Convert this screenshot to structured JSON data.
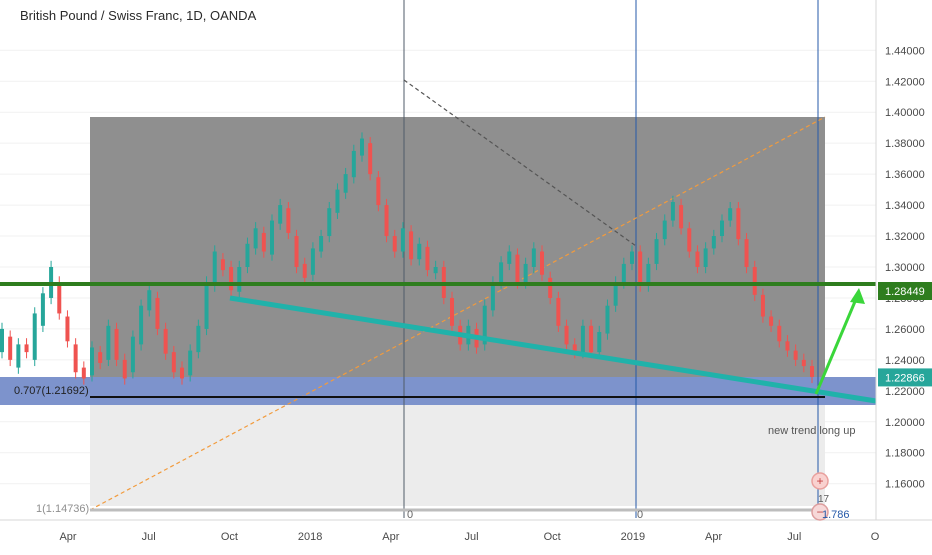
{
  "header": {
    "title": "British Pound / Swiss Franc, 1D, OANDA"
  },
  "chart_data": {
    "type": "candlestick",
    "title": "British Pound / Swiss Franc, 1D, OANDA",
    "y_axis": {
      "ticks": [
        "1.44000",
        "1.42000",
        "1.40000",
        "1.38000",
        "1.36000",
        "1.34000",
        "1.32000",
        "1.30000",
        "1.28000",
        "1.26000",
        "1.24000",
        "1.22000",
        "1.20000",
        "1.18000",
        "1.16000"
      ],
      "tick_values": [
        1.44,
        1.42,
        1.4,
        1.38,
        1.36,
        1.34,
        1.32,
        1.3,
        1.28,
        1.26,
        1.24,
        1.22,
        1.2,
        1.18,
        1.16
      ],
      "ylim": [
        1.143,
        1.457
      ]
    },
    "x_axis": {
      "ticks": [
        "Apr",
        "Jul",
        "Oct",
        "2018",
        "Apr",
        "Jul",
        "Oct",
        "2019",
        "Apr",
        "Jul",
        "O"
      ],
      "tick_index": [
        0,
        1,
        2,
        3,
        4,
        5,
        6,
        7,
        8,
        9,
        10
      ]
    },
    "price_labels": [
      {
        "text": "1.28449",
        "value": 1.28449,
        "color": "#2e7d1e"
      },
      {
        "text": "1.22866",
        "value": 1.22866,
        "color": "#26a69a"
      }
    ],
    "levels": {
      "support_line": 1.28449,
      "fib_box_top": 1.385,
      "fib_level_707": 1.21692,
      "fib_level_1": 1.14736
    },
    "fib_labels": {
      "level_707": "0.707(1.21692)",
      "level_1": "1(1.14736)"
    },
    "annotations": {
      "trend_text": "new trend long up",
      "zero_label_a": "0",
      "zero_label_b": "0",
      "bottom_count": "17",
      "bottom_value": "1.786"
    },
    "path_points": [
      [
        1.245,
        1.26
      ],
      [
        1.255,
        1.24
      ],
      [
        1.235,
        1.25
      ],
      [
        1.25,
        1.245
      ],
      [
        1.24,
        1.27
      ],
      [
        1.262,
        1.283
      ],
      [
        1.28,
        1.3
      ],
      [
        1.29,
        1.27
      ],
      [
        1.268,
        1.252
      ],
      [
        1.25,
        1.232
      ],
      [
        1.235,
        1.228
      ],
      [
        1.23,
        1.248
      ],
      [
        1.245,
        1.238
      ],
      [
        1.24,
        1.262
      ],
      [
        1.26,
        1.24
      ],
      [
        1.24,
        1.228
      ],
      [
        1.232,
        1.255
      ],
      [
        1.25,
        1.275
      ],
      [
        1.272,
        1.285
      ],
      [
        1.28,
        1.26
      ],
      [
        1.26,
        1.244
      ],
      [
        1.245,
        1.232
      ],
      [
        1.235,
        1.228
      ],
      [
        1.23,
        1.246
      ],
      [
        1.245,
        1.262
      ],
      [
        1.26,
        1.29
      ],
      [
        1.288,
        1.31
      ],
      [
        1.305,
        1.298
      ],
      [
        1.3,
        1.285
      ],
      [
        1.284,
        1.3
      ],
      [
        1.3,
        1.315
      ],
      [
        1.312,
        1.325
      ],
      [
        1.322,
        1.31
      ],
      [
        1.308,
        1.33
      ],
      [
        1.328,
        1.34
      ],
      [
        1.338,
        1.322
      ],
      [
        1.32,
        1.3
      ],
      [
        1.302,
        1.293
      ],
      [
        1.295,
        1.312
      ],
      [
        1.31,
        1.32
      ],
      [
        1.32,
        1.338
      ],
      [
        1.335,
        1.35
      ],
      [
        1.348,
        1.36
      ],
      [
        1.358,
        1.375
      ],
      [
        1.372,
        1.383
      ],
      [
        1.38,
        1.36
      ],
      [
        1.358,
        1.34
      ],
      [
        1.34,
        1.32
      ],
      [
        1.32,
        1.31
      ],
      [
        1.31,
        1.325
      ],
      [
        1.323,
        1.305
      ],
      [
        1.305,
        1.315
      ],
      [
        1.313,
        1.298
      ],
      [
        1.296,
        1.3
      ],
      [
        1.3,
        1.28
      ],
      [
        1.28,
        1.262
      ],
      [
        1.262,
        1.25
      ],
      [
        1.25,
        1.262
      ],
      [
        1.26,
        1.248
      ],
      [
        1.25,
        1.275
      ],
      [
        1.272,
        1.29
      ],
      [
        1.29,
        1.303
      ],
      [
        1.302,
        1.31
      ],
      [
        1.308,
        1.29
      ],
      [
        1.29,
        1.302
      ],
      [
        1.3,
        1.312
      ],
      [
        1.31,
        1.295
      ],
      [
        1.293,
        1.28
      ],
      [
        1.28,
        1.262
      ],
      [
        1.262,
        1.25
      ],
      [
        1.25,
        1.245
      ],
      [
        1.245,
        1.262
      ],
      [
        1.262,
        1.245
      ],
      [
        1.245,
        1.258
      ],
      [
        1.257,
        1.275
      ],
      [
        1.275,
        1.29
      ],
      [
        1.29,
        1.302
      ],
      [
        1.302,
        1.31
      ],
      [
        1.31,
        1.288
      ],
      [
        1.288,
        1.302
      ],
      [
        1.302,
        1.318
      ],
      [
        1.318,
        1.33
      ],
      [
        1.33,
        1.342
      ],
      [
        1.34,
        1.325
      ],
      [
        1.325,
        1.31
      ],
      [
        1.31,
        1.3
      ],
      [
        1.3,
        1.312
      ],
      [
        1.312,
        1.32
      ],
      [
        1.32,
        1.33
      ],
      [
        1.33,
        1.338
      ],
      [
        1.338,
        1.318
      ],
      [
        1.318,
        1.3
      ],
      [
        1.3,
        1.282
      ],
      [
        1.282,
        1.268
      ],
      [
        1.268,
        1.262
      ],
      [
        1.262,
        1.252
      ],
      [
        1.252,
        1.246
      ],
      [
        1.246,
        1.24
      ],
      [
        1.24,
        1.236
      ],
      [
        1.236,
        1.229
      ]
    ],
    "colors": {
      "bull": "#26a69a",
      "bear": "#ef5350",
      "support": "#2e7d1e",
      "trendline": "#20b2aa",
      "arrow": "#3ad63a"
    }
  }
}
